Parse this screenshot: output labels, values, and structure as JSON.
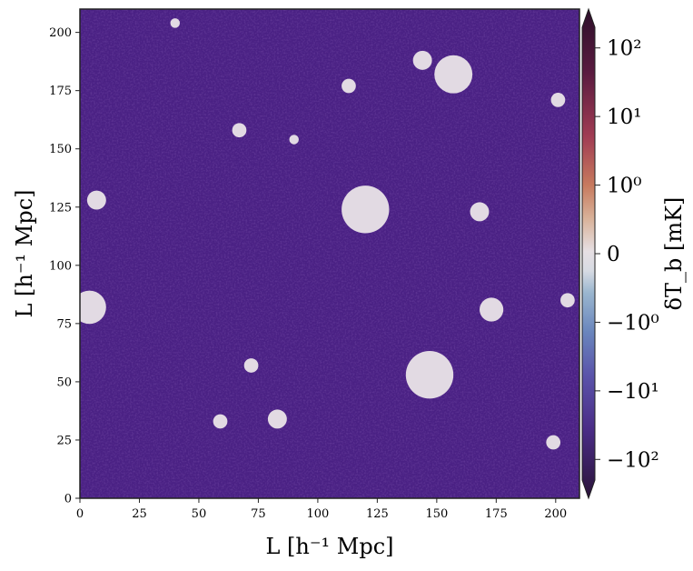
{
  "chart_data": {
    "type": "heatmap",
    "title": "",
    "xlabel": "L [h⁻¹ Mpc]",
    "ylabel": "L [h⁻¹ Mpc]",
    "xlim": [
      0,
      210
    ],
    "ylim": [
      0,
      210
    ],
    "x_ticks": [
      0,
      25,
      50,
      75,
      100,
      125,
      150,
      175,
      200
    ],
    "y_ticks": [
      0,
      25,
      50,
      75,
      100,
      125,
      150,
      175,
      200
    ],
    "colorbar": {
      "label": "δT_b [mK]",
      "scale": "symlog",
      "range": [
        -200,
        200
      ],
      "extend": "both",
      "ticks": [
        {
          "value": 100,
          "label": "10²"
        },
        {
          "value": 10,
          "label": "10¹"
        },
        {
          "value": 1,
          "label": "10⁰"
        },
        {
          "value": 0,
          "label": "0"
        },
        {
          "value": -1,
          "label": "−10⁰"
        },
        {
          "value": -10,
          "label": "−10¹"
        },
        {
          "value": -100,
          "label": "−10²"
        }
      ],
      "colors": {
        "strong_positive": "#2c0f2a",
        "positive": "#8c2a4a",
        "mid_positive": "#c98a68",
        "zero": "#e3dbe3",
        "mid_negative": "#7aa1c6",
        "negative": "#4a3a9a",
        "strong_negative": "#2a1338"
      }
    },
    "field": {
      "background_value_mK": -35,
      "background_color": "#4a2184",
      "ionized_region_color": "#e2dae3",
      "ionized_regions": [
        {
          "x": 4,
          "y": 82,
          "r": 7
        },
        {
          "x": 7,
          "y": 128,
          "r": 4
        },
        {
          "x": 40,
          "y": 204,
          "r": 2
        },
        {
          "x": 59,
          "y": 33,
          "r": 3
        },
        {
          "x": 67,
          "y": 158,
          "r": 3
        },
        {
          "x": 72,
          "y": 57,
          "r": 3
        },
        {
          "x": 83,
          "y": 34,
          "r": 4
        },
        {
          "x": 90,
          "y": 154,
          "r": 2
        },
        {
          "x": 113,
          "y": 177,
          "r": 3
        },
        {
          "x": 120,
          "y": 124,
          "r": 10
        },
        {
          "x": 144,
          "y": 188,
          "r": 4
        },
        {
          "x": 147,
          "y": 53,
          "r": 10
        },
        {
          "x": 157,
          "y": 182,
          "r": 8
        },
        {
          "x": 168,
          "y": 123,
          "r": 4
        },
        {
          "x": 173,
          "y": 81,
          "r": 5
        },
        {
          "x": 199,
          "y": 24,
          "r": 3
        },
        {
          "x": 201,
          "y": 171,
          "r": 3
        },
        {
          "x": 205,
          "y": 85,
          "r": 3
        }
      ]
    }
  }
}
